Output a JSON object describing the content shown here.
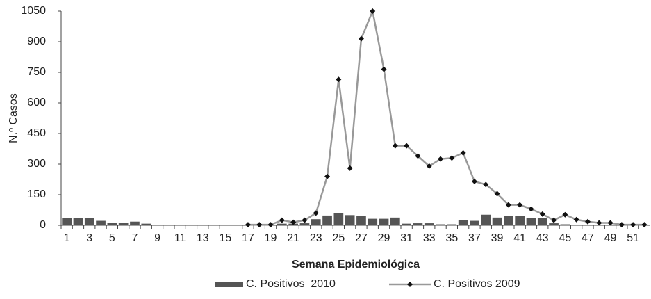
{
  "chart_data": {
    "type": "combo",
    "x_label": "Semana Epidemiológica",
    "y_label": "N.º Casos",
    "categories": [
      1,
      null,
      3,
      null,
      5,
      null,
      7,
      null,
      9,
      null,
      11,
      null,
      13,
      null,
      15,
      null,
      17,
      null,
      19,
      null,
      21,
      null,
      23,
      null,
      25,
      null,
      27,
      null,
      29,
      null,
      31,
      null,
      33,
      null,
      35,
      null,
      37,
      null,
      39,
      null,
      41,
      null,
      43,
      null,
      45,
      null,
      47,
      null,
      49,
      null,
      51,
      null
    ],
    "ylim": [
      0,
      1050
    ],
    "yticks": [
      0,
      150,
      300,
      450,
      600,
      750,
      900,
      1050
    ],
    "grid": false,
    "legend": "bottom",
    "series": [
      {
        "name": "C. Positivos  2010",
        "type": "bar",
        "color": "#555555",
        "values": [
          35,
          35,
          35,
          22,
          12,
          12,
          18,
          8,
          3,
          3,
          3,
          3,
          3,
          3,
          3,
          3,
          3,
          3,
          3,
          8,
          8,
          10,
          30,
          48,
          60,
          50,
          45,
          32,
          32,
          38,
          8,
          10,
          10,
          5,
          5,
          25,
          22,
          52,
          38,
          45,
          45,
          35,
          35,
          10,
          5,
          3,
          3,
          3,
          3,
          3,
          3,
          3
        ]
      },
      {
        "name": "C. Positivos 2009",
        "type": "line",
        "color": "#999999",
        "marker_color": "#111111",
        "values": [
          null,
          null,
          null,
          null,
          null,
          null,
          null,
          null,
          null,
          null,
          null,
          null,
          null,
          null,
          null,
          null,
          3,
          3,
          3,
          25,
          15,
          25,
          60,
          240,
          715,
          280,
          915,
          1050,
          765,
          390,
          390,
          340,
          290,
          325,
          330,
          355,
          215,
          200,
          155,
          100,
          100,
          80,
          55,
          25,
          52,
          28,
          18,
          12,
          12,
          3,
          3,
          3
        ]
      }
    ]
  }
}
